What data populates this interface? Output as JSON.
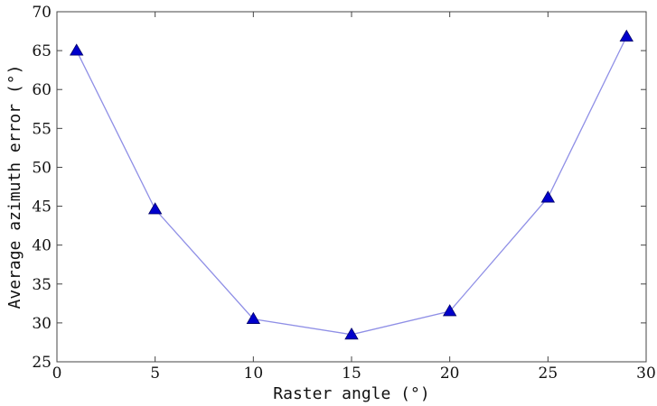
{
  "chart_data": {
    "type": "line",
    "title": "",
    "xlabel": "Raster angle (°)",
    "ylabel": "Average azimuth error (°)",
    "xlim": [
      0,
      30
    ],
    "ylim": [
      25,
      70
    ],
    "xticks": [
      0,
      5,
      10,
      15,
      20,
      25,
      30
    ],
    "yticks": [
      25,
      30,
      35,
      40,
      45,
      50,
      55,
      60,
      65,
      70
    ],
    "grid": false,
    "legend": "none",
    "series": [
      {
        "marker": "triangle",
        "color": "#0000cc",
        "line_color": "#8f8fe6",
        "x": [
          1,
          5,
          10,
          15,
          20,
          25,
          29
        ],
        "y": [
          65,
          44.6,
          30.5,
          28.5,
          31.5,
          46.1,
          66.8
        ]
      }
    ]
  }
}
